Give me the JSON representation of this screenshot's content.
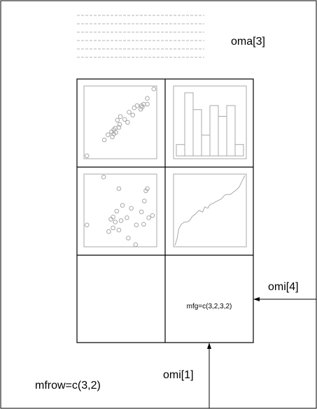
{
  "labels": {
    "oma": "oma[3]",
    "omi_right": "omi[4]",
    "omi_bottom": "omi[1]",
    "mfrow": "mfrow=c(3,2)",
    "mfg": "mfg=c(3,2,3,2)"
  },
  "colors": {
    "frame": "#000000",
    "plot": "#a8a8a8",
    "dash": "#b4b4b4"
  },
  "layout": {
    "rows": 3,
    "cols": 2,
    "current_figure": [
      3,
      2
    ]
  },
  "panels": {
    "scatter_1": {
      "type": "scatter",
      "x": [
        0.04,
        0.28,
        0.33,
        0.38,
        0.39,
        0.41,
        0.41,
        0.43,
        0.44,
        0.46,
        0.48,
        0.49,
        0.5,
        0.56,
        0.6,
        0.62,
        0.67,
        0.69,
        0.73,
        0.78,
        0.79,
        0.8,
        0.82,
        0.87,
        0.87,
        0.96
      ],
      "y": [
        0.04,
        0.26,
        0.33,
        0.37,
        0.3,
        0.4,
        0.34,
        0.42,
        0.36,
        0.53,
        0.43,
        0.47,
        0.58,
        0.54,
        0.5,
        0.64,
        0.6,
        0.7,
        0.73,
        0.68,
        0.73,
        0.71,
        0.75,
        0.83,
        0.75,
        0.96
      ]
    },
    "histogram": {
      "type": "histogram",
      "values": [
        0.17,
        0.94,
        0.69,
        0.31,
        0.75,
        0.59,
        0.75,
        0.17
      ]
    },
    "scatter_2": {
      "type": "scatter",
      "x": [
        0.04,
        0.27,
        0.34,
        0.37,
        0.4,
        0.4,
        0.43,
        0.45,
        0.48,
        0.48,
        0.51,
        0.53,
        0.59,
        0.61,
        0.65,
        0.71,
        0.72,
        0.79,
        0.82,
        0.83,
        0.85,
        0.87,
        0.89,
        0.94
      ],
      "y": [
        0.3,
        0.96,
        0.21,
        0.38,
        0.26,
        0.41,
        0.34,
        0.49,
        0.23,
        0.8,
        0.36,
        0.57,
        0.4,
        0.12,
        0.53,
        0.03,
        0.3,
        0.48,
        0.31,
        0.63,
        0.77,
        0.8,
        0.4,
        0.43
      ]
    },
    "line": {
      "type": "line",
      "x": [
        0.02,
        0.05,
        0.07,
        0.1,
        0.12,
        0.15,
        0.18,
        0.22,
        0.26,
        0.3,
        0.35,
        0.4,
        0.43,
        0.47,
        0.5,
        0.55,
        0.58,
        0.62,
        0.66,
        0.7,
        0.74,
        0.78,
        0.82,
        0.86,
        0.9,
        0.93,
        0.96,
        0.98
      ],
      "y": [
        0.02,
        0.12,
        0.24,
        0.3,
        0.32,
        0.34,
        0.34,
        0.36,
        0.42,
        0.45,
        0.5,
        0.48,
        0.55,
        0.53,
        0.58,
        0.6,
        0.62,
        0.64,
        0.66,
        0.71,
        0.72,
        0.72,
        0.75,
        0.78,
        0.82,
        0.88,
        0.94,
        0.98
      ]
    }
  }
}
